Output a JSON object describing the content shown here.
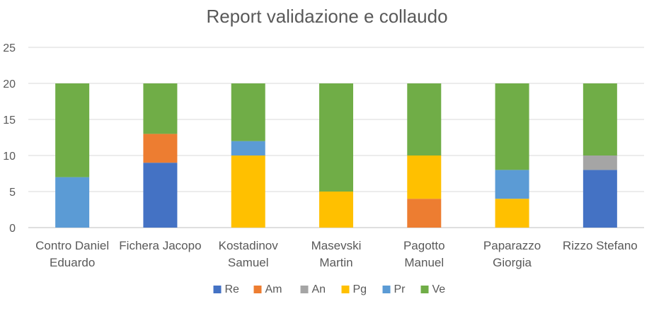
{
  "chart_data": {
    "type": "bar",
    "stacked": true,
    "title": "Report validazione e collaudo",
    "xlabel": "",
    "ylabel": "",
    "ylim": [
      0,
      25
    ],
    "yticks": [
      0,
      5,
      10,
      15,
      20,
      25
    ],
    "grid": true,
    "legend_position": "bottom",
    "categories": [
      [
        "Contro Daniel",
        "Eduardo"
      ],
      [
        "Fichera Jacopo"
      ],
      [
        "Kostadinov",
        "Samuel"
      ],
      [
        "Masevski",
        "Martin"
      ],
      [
        "Pagotto",
        "Manuel"
      ],
      [
        "Paparazzo",
        "Giorgia"
      ],
      [
        "Rizzo Stefano"
      ]
    ],
    "series": [
      {
        "name": "Re",
        "color": "#4472C4",
        "values": [
          0,
          9,
          0,
          0,
          0,
          0,
          8
        ]
      },
      {
        "name": "Am",
        "color": "#ED7D31",
        "values": [
          0,
          4,
          0,
          0,
          4,
          0,
          0
        ]
      },
      {
        "name": "An",
        "color": "#A5A5A5",
        "values": [
          0,
          0,
          0,
          0,
          0,
          0,
          2
        ]
      },
      {
        "name": "Pg",
        "color": "#FFC000",
        "values": [
          0,
          0,
          10,
          5,
          6,
          4,
          0
        ]
      },
      {
        "name": "Pr",
        "color": "#5B9BD5",
        "values": [
          7,
          0,
          2,
          0,
          0,
          4,
          0
        ]
      },
      {
        "name": "Ve",
        "color": "#70AD47",
        "values": [
          13,
          7,
          8,
          15,
          10,
          12,
          10
        ]
      }
    ]
  }
}
